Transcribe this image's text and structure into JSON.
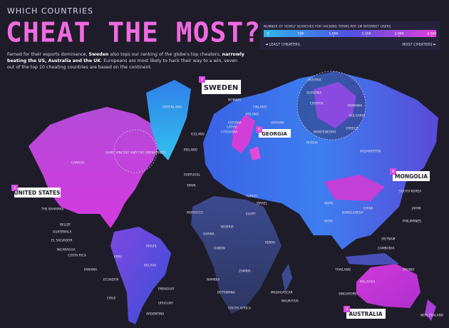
{
  "header": {
    "kicker": "WHICH COUNTRIES",
    "title": "CHEAT THE MOST?",
    "intro": [
      "Famed for their esports dominance, ",
      "Sweden",
      " also tops our ranking of the globe's top cheaters, ",
      "narrowly beating the US, Australia and the UK",
      ". Europeans are most likely to hack their way to a win, seven out of the top 10 cheating countries are based on the continent."
    ]
  },
  "legend": {
    "title": "NUMBER OF YEARLY SEARCHES FOR HACKING TERMS PER 1M INTERNET USERS",
    "ticks": [
      0,
      500,
      {
        "value": 1000,
        "label": "1,000"
      },
      {
        "value": 1500,
        "label": "1,500"
      },
      {
        "value": 2000,
        "label": "2,000"
      },
      {
        "value": 2500,
        "label": "2,500"
      }
    ],
    "least": "LEAST CHEATERS",
    "most": "MOST CHEATERS"
  },
  "callouts": [
    {
      "rank": "1",
      "country": "SWEDEN"
    },
    {
      "rank": "2",
      "country": "UNITED STATES"
    },
    {
      "rank": "3",
      "country": "AUSTRALIA"
    },
    {
      "rank": "4",
      "country": "MONGOLIA"
    },
    {
      "rank": "5",
      "country": "GEORGIA"
    }
  ],
  "labels": [
    "CANADA",
    "GREENLAND",
    "ICELAND",
    "NORWAY",
    "FINLAND",
    "ESTONIA",
    "LATVIA",
    "LITHUANIA",
    "POLAND",
    "IRELAND",
    "PORTUGAL",
    "SPAIN",
    "MOROCCO",
    "EGYPT",
    "ISRAEL",
    "TURKEY",
    "UKRAINE",
    "RUSSIA",
    "KAZAKHSTAN",
    "CHINA",
    "JAPAN",
    "SOUTH KOREA",
    "NEPAL",
    "INDIA",
    "BANGLADESH",
    "THAILAND",
    "VIETNAM",
    "CAMBODIA",
    "PHILIPPINES",
    "MALAYSIA",
    "SINGAPORE",
    "BRUNEI",
    "NEW ZEALAND",
    "SOUTH AFRICA",
    "NAMIBIA",
    "BOTSWANA",
    "ZAMBIA",
    "KENYA",
    "NIGERIA",
    "GHANA",
    "GABON",
    "MADAGASCAR",
    "MAURITIUS",
    "THE BAHAMAS",
    "BELIZE",
    "GUATEMALA",
    "EL SALVADOR",
    "NICARAGUA",
    "COSTA RICA",
    "PANAMA",
    "ECUADOR",
    "PERU",
    "BOLIVIA",
    "PARAGUAY",
    "CHILE",
    "URUGUAY",
    "ARGENTINA",
    "BRAZIL",
    "SAINT VINCENT AND THE GRENADINES",
    "AUSTRIA",
    "SLOVENIA",
    "CROATIA",
    "ROMANIA",
    "BULGARIA",
    "GREECE",
    "MONTENEGRO"
  ]
}
